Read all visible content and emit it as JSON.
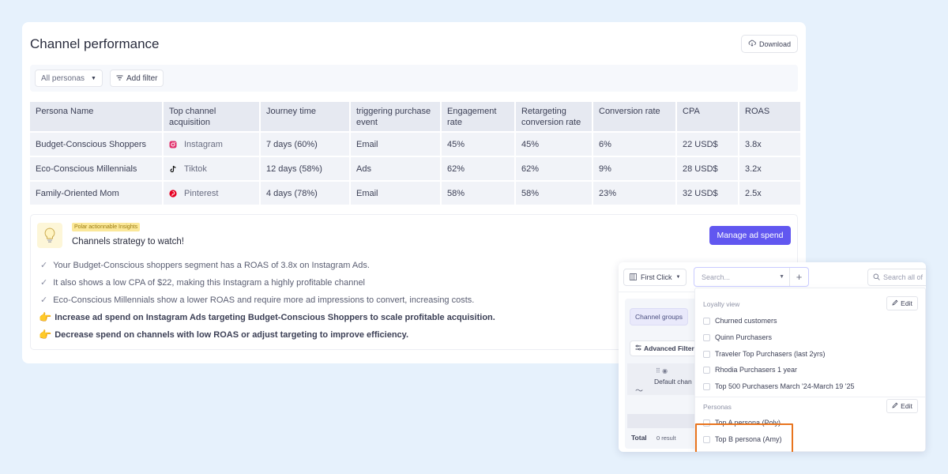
{
  "header": {
    "title": "Channel performance",
    "download_label": "Download"
  },
  "filters": {
    "persona_select": "All personas",
    "add_filter": "Add filter"
  },
  "table": {
    "columns": [
      "Persona Name",
      "Top channel acquisition",
      "Journey time",
      "triggering purchase event",
      "Engagement rate",
      "Retargeting conversion rate",
      "Conversion rate",
      "CPA",
      "ROAS"
    ],
    "rows": [
      {
        "persona": "Budget-Conscious Shoppers",
        "channel": "Instagram",
        "channel_icon": "instagram-icon",
        "journey": "7 days (60%)",
        "event": "Email",
        "engagement": "45%",
        "retargeting": "45%",
        "conversion": "6%",
        "cpa": "22 USD$",
        "roas": "3.8x"
      },
      {
        "persona": "Eco-Conscious Millennials",
        "channel": "Tiktok",
        "channel_icon": "tiktok-icon",
        "journey": "12 days (58%)",
        "event": "Ads",
        "engagement": "62%",
        "retargeting": "62%",
        "conversion": "9%",
        "cpa": "28 USD$",
        "roas": "3.2x"
      },
      {
        "persona": "Family-Oriented Mom",
        "channel": "Pinterest",
        "channel_icon": "pinterest-icon",
        "journey": "4 days (78%)",
        "event": "Email",
        "engagement": "58%",
        "retargeting": "58%",
        "conversion": "23%",
        "cpa": "32 USD$",
        "roas": "2.5x"
      }
    ]
  },
  "insights": {
    "badge": "Polar actionnable Insights",
    "title": "Channels strategy to watch!",
    "button": "Manage ad spend",
    "bullets": [
      "Your Budget-Conscious shoppers segment has a ROAS of 3.8x on Instagram Ads.",
      "It also shows a low CPA of $22, making this Instagram a highly profitable channel",
      "Eco-Conscious Millennials show a lower ROAS and require more ad impressions to convert, increasing costs."
    ],
    "actions": [
      "Increase ad spend on Instagram Ads targeting Budget-Conscious Shoppers to scale profitable acquisition.",
      "Decrease spend on channels with low ROAS or adjust targeting to improve efficiency."
    ]
  },
  "overlay": {
    "attribution": "First Click",
    "search_placeholder": "Search...",
    "search_all": "Search all of",
    "channel_groups": "Channel groups",
    "advanced_filters": "Advanced Filters",
    "default_channel": "Default chan",
    "total_label": "Total",
    "result_count": "0 result",
    "loyalty": {
      "title": "Loyalty view",
      "edit": "Edit",
      "options": [
        "Churned customers",
        "Quinn Purchasers",
        "Traveler Top Purchasers (last 2yrs)",
        "Rhodia Purchasers 1 year",
        "Top 500 Purchasers March '24-March 19 '25"
      ]
    },
    "personas": {
      "title": "Personas",
      "edit": "Edit",
      "options": [
        "Top A persona (Poly)",
        "Top B persona (Amy)"
      ]
    },
    "highlight_color": "#e8741e"
  }
}
